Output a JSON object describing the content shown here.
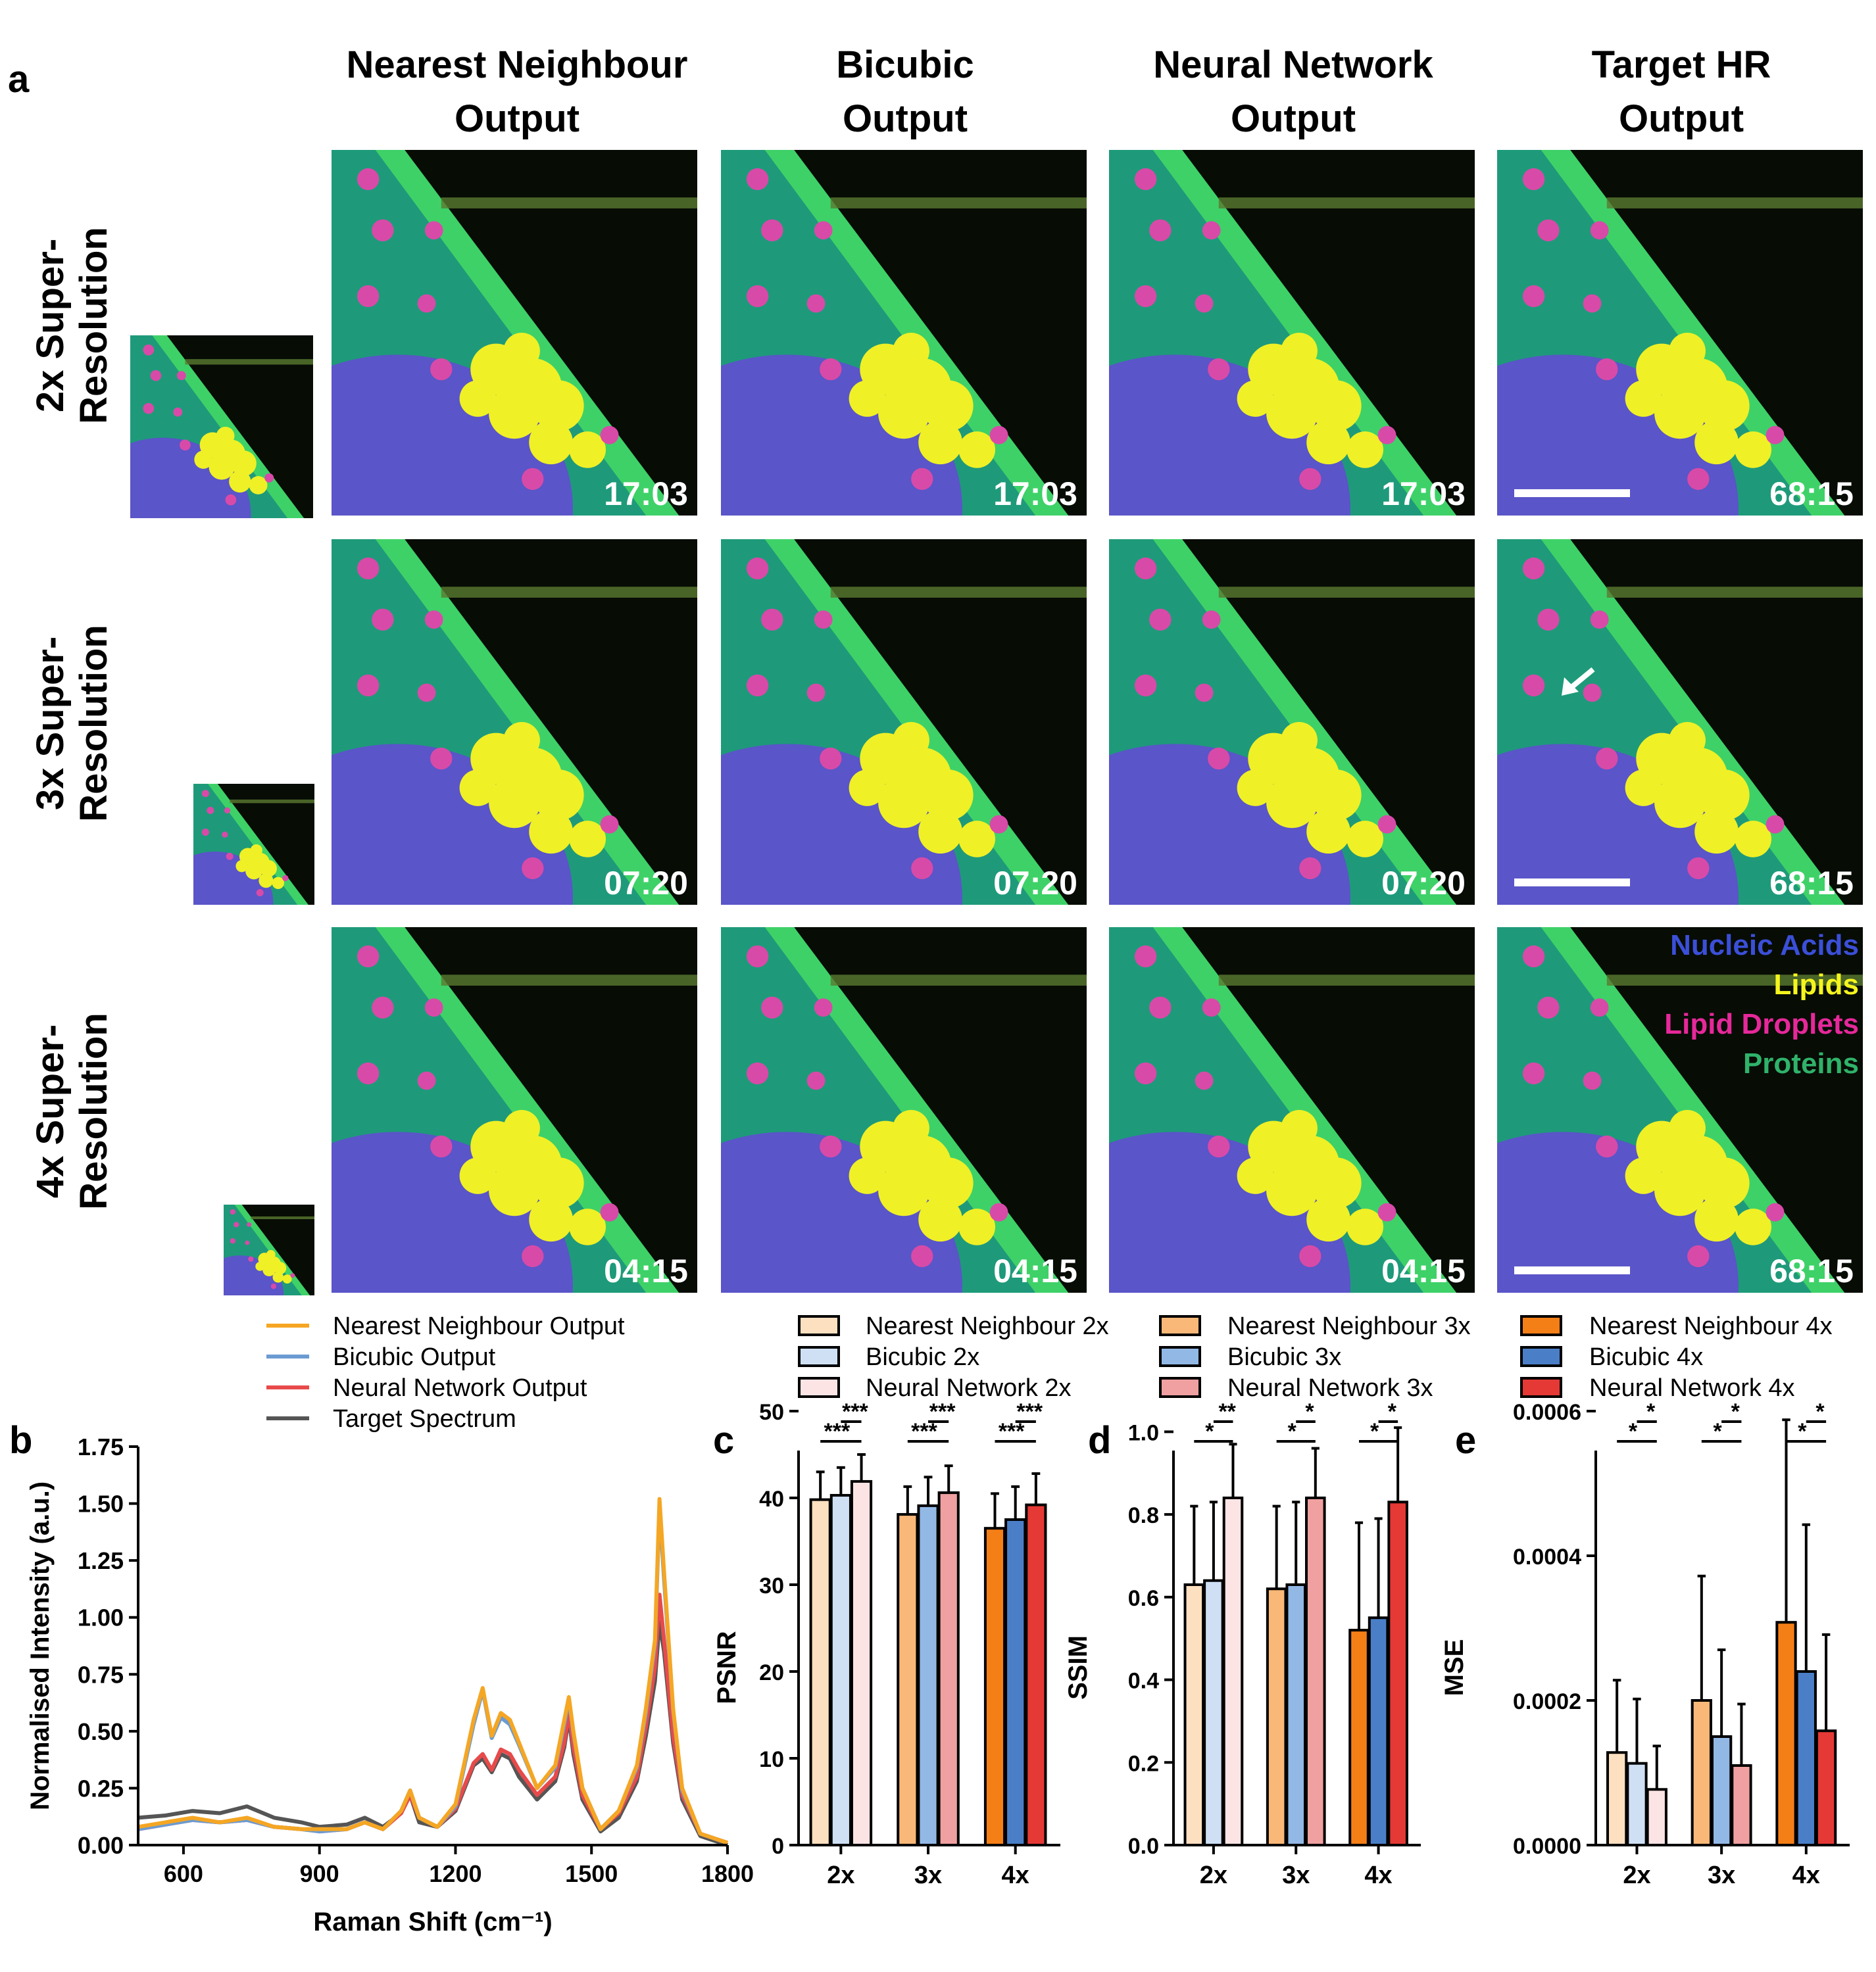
{
  "panel_a": {
    "letter": "a",
    "columns": [
      {
        "line1": "Nearest Neighbour",
        "line2": "Output"
      },
      {
        "line1": "Bicubic",
        "line2": "Output"
      },
      {
        "line1": "Neural Network",
        "line2": "Output"
      },
      {
        "line1": "Target HR",
        "line2": "Output"
      }
    ],
    "rows": [
      {
        "line1": "2x Super-",
        "line2": "Resolution",
        "times": [
          "17:03",
          "17:03",
          "17:03",
          "68:15"
        ]
      },
      {
        "line1": "3x Super-",
        "line2": "Resolution",
        "times": [
          "07:20",
          "07:20",
          "07:20",
          "68:15"
        ]
      },
      {
        "line1": "4x Super-",
        "line2": "Resolution",
        "times": [
          "04:15",
          "04:15",
          "04:15",
          "68:15"
        ]
      }
    ],
    "channel_legend": [
      {
        "label": "Nucleic Acids",
        "color": "#3b4fd8"
      },
      {
        "label": "Lipids",
        "color": "#f5f51e"
      },
      {
        "label": "Lipid Droplets",
        "color": "#e6289a"
      },
      {
        "label": "Proteins",
        "color": "#2fb36a"
      }
    ],
    "image_colors": {
      "background": "#070c05",
      "nucleus": "#5a55c8",
      "cytoplasm": "#1e9a7a",
      "membrane": "#3ed168",
      "lipid": "#f0f026",
      "droplet": "#d84aa8"
    }
  },
  "legend_b": [
    {
      "label": "Nearest Neighbour Output",
      "color": "#f5a623"
    },
    {
      "label": "Bicubic Output",
      "color": "#6b9bd2"
    },
    {
      "label": "Neural Network Output",
      "color": "#e84a4a"
    },
    {
      "label": "Target Spectrum",
      "color": "#555555"
    }
  ],
  "legend_bars": [
    {
      "label": "Nearest Neighbour 2x",
      "color": "#fde0c0"
    },
    {
      "label": "Bicubic 2x",
      "color": "#cfe0f5"
    },
    {
      "label": "Neural Network 2x",
      "color": "#fde4e4"
    },
    {
      "label": "Nearest Neighbour 3x",
      "color": "#f9b878"
    },
    {
      "label": "Bicubic 3x",
      "color": "#92b8e6"
    },
    {
      "label": "Neural Network 3x",
      "color": "#f0a0a0"
    },
    {
      "label": "Nearest Neighbour 4x",
      "color": "#f57f17"
    },
    {
      "label": "Bicubic 4x",
      "color": "#4a7fc8"
    },
    {
      "label": "Neural Network 4x",
      "color": "#e53935"
    }
  ],
  "chart_data": [
    {
      "panel": "b",
      "type": "line",
      "xlabel": "Raman Shift (cm⁻¹)",
      "ylabel": "Normalised Intensity (a.u.)",
      "xlim": [
        500,
        1800
      ],
      "ylim": [
        0,
        1.75
      ],
      "xticks": [
        600,
        900,
        1200,
        1500,
        1800
      ],
      "yticks": [
        "0.00",
        "0.25",
        "0.50",
        "0.75",
        "1.00",
        "1.25",
        "1.50",
        "1.75"
      ],
      "x": [
        500,
        560,
        620,
        680,
        740,
        800,
        860,
        900,
        960,
        1000,
        1040,
        1080,
        1100,
        1120,
        1160,
        1200,
        1240,
        1260,
        1280,
        1300,
        1320,
        1340,
        1380,
        1420,
        1440,
        1450,
        1460,
        1480,
        1520,
        1560,
        1600,
        1620,
        1640,
        1650,
        1660,
        1680,
        1700,
        1740,
        1800
      ],
      "series": [
        {
          "name": "Nearest Neighbour Output",
          "color": "#f5a623",
          "values": [
            0.08,
            0.1,
            0.12,
            0.1,
            0.12,
            0.08,
            0.07,
            0.07,
            0.07,
            0.1,
            0.07,
            0.15,
            0.24,
            0.12,
            0.08,
            0.18,
            0.55,
            0.69,
            0.48,
            0.58,
            0.55,
            0.45,
            0.25,
            0.35,
            0.55,
            0.65,
            0.5,
            0.25,
            0.07,
            0.15,
            0.35,
            0.6,
            0.9,
            1.52,
            1.2,
            0.6,
            0.25,
            0.05,
            0.01
          ]
        },
        {
          "name": "Bicubic Output",
          "color": "#6b9bd2",
          "values": [
            0.07,
            0.09,
            0.11,
            0.1,
            0.11,
            0.08,
            0.07,
            0.06,
            0.07,
            0.1,
            0.07,
            0.15,
            0.24,
            0.12,
            0.08,
            0.17,
            0.53,
            0.68,
            0.47,
            0.56,
            0.53,
            0.44,
            0.25,
            0.34,
            0.53,
            0.64,
            0.49,
            0.25,
            0.07,
            0.15,
            0.34,
            0.58,
            0.88,
            1.48,
            1.17,
            0.59,
            0.24,
            0.05,
            0.01
          ]
        },
        {
          "name": "Neural Network Output",
          "color": "#e84a4a",
          "values": [
            0.07,
            0.09,
            0.11,
            0.1,
            0.11,
            0.08,
            0.07,
            0.06,
            0.07,
            0.1,
            0.07,
            0.14,
            0.22,
            0.12,
            0.08,
            0.16,
            0.36,
            0.4,
            0.33,
            0.42,
            0.4,
            0.33,
            0.22,
            0.3,
            0.45,
            0.58,
            0.43,
            0.22,
            0.07,
            0.14,
            0.3,
            0.52,
            0.78,
            1.1,
            0.9,
            0.48,
            0.22,
            0.05,
            0.01
          ]
        },
        {
          "name": "Target Spectrum",
          "color": "#555555",
          "values": [
            0.12,
            0.13,
            0.15,
            0.14,
            0.17,
            0.12,
            0.1,
            0.08,
            0.09,
            0.12,
            0.08,
            0.14,
            0.22,
            0.1,
            0.08,
            0.15,
            0.35,
            0.38,
            0.32,
            0.4,
            0.38,
            0.3,
            0.2,
            0.28,
            0.43,
            0.56,
            0.4,
            0.2,
            0.06,
            0.12,
            0.28,
            0.48,
            0.72,
            0.98,
            0.85,
            0.45,
            0.2,
            0.04,
            0.0
          ]
        }
      ]
    },
    {
      "panel": "c",
      "type": "bar",
      "ylabel": "PSNR",
      "ylim": [
        0,
        50
      ],
      "yticks": [
        "0",
        "10",
        "20",
        "30",
        "40",
        "50"
      ],
      "categories": [
        "2x",
        "3x",
        "4x"
      ],
      "series": [
        {
          "name": "Nearest Neighbour",
          "values": [
            39.8,
            38.1,
            36.5
          ],
          "errors": [
            3.2,
            3.2,
            4.0
          ]
        },
        {
          "name": "Bicubic",
          "values": [
            40.3,
            39.1,
            37.5
          ],
          "errors": [
            3.2,
            3.3,
            3.8
          ]
        },
        {
          "name": "Neural Network",
          "values": [
            41.9,
            40.6,
            39.2
          ],
          "errors": [
            3.1,
            3.1,
            3.6
          ]
        }
      ],
      "significance": [
        {
          "group": 0,
          "pair": "bicubic-nn",
          "label": "***"
        },
        {
          "group": 0,
          "pair": "nn-nn",
          "label": "***"
        },
        {
          "group": 1,
          "pair": "bicubic-nn",
          "label": "***"
        },
        {
          "group": 1,
          "pair": "nn-nn",
          "label": "***"
        },
        {
          "group": 2,
          "pair": "bicubic-nn",
          "label": "***"
        },
        {
          "group": 2,
          "pair": "nn-nn",
          "label": "***"
        }
      ]
    },
    {
      "panel": "d",
      "type": "bar",
      "ylabel": "SSIM",
      "ylim": [
        0,
        1.05
      ],
      "yticks": [
        "0.0",
        "0.2",
        "0.4",
        "0.6",
        "0.8",
        "1.0"
      ],
      "categories": [
        "2x",
        "3x",
        "4x"
      ],
      "series": [
        {
          "name": "Nearest Neighbour",
          "values": [
            0.63,
            0.62,
            0.52
          ],
          "errors": [
            0.19,
            0.2,
            0.26
          ]
        },
        {
          "name": "Bicubic",
          "values": [
            0.64,
            0.63,
            0.55
          ],
          "errors": [
            0.19,
            0.2,
            0.24
          ]
        },
        {
          "name": "Neural Network",
          "values": [
            0.84,
            0.84,
            0.83
          ],
          "errors": [
            0.13,
            0.12,
            0.18
          ]
        }
      ],
      "significance": [
        {
          "group": 0,
          "pair": "bicubic-nn",
          "label": "**"
        },
        {
          "group": 0,
          "pair": "nn-nn",
          "label": "*"
        },
        {
          "group": 1,
          "pair": "bicubic-nn",
          "label": "*"
        },
        {
          "group": 1,
          "pair": "nn-nn",
          "label": "*"
        },
        {
          "group": 2,
          "pair": "bicubic-nn",
          "label": "*"
        },
        {
          "group": 2,
          "pair": "nn-nn",
          "label": "*"
        }
      ]
    },
    {
      "panel": "e",
      "type": "bar",
      "ylabel": "MSE",
      "ylim": [
        0,
        0.0006
      ],
      "yticks": [
        "0.0000",
        "0.0002",
        "0.0004",
        "0.0006"
      ],
      "categories": [
        "2x",
        "3x",
        "4x"
      ],
      "series": [
        {
          "name": "Nearest Neighbour",
          "values": [
            0.000128,
            0.0002,
            0.000308
          ],
          "errors": [
            0.0001,
            0.000172,
            0.00028
          ]
        },
        {
          "name": "Bicubic",
          "values": [
            0.000113,
            0.00015,
            0.00024
          ],
          "errors": [
            8.9e-05,
            0.00012,
            0.000203
          ]
        },
        {
          "name": "Neural Network",
          "values": [
            7.7e-05,
            0.00011,
            0.000158
          ],
          "errors": [
            6e-05,
            8.5e-05,
            0.000133
          ]
        }
      ],
      "significance": [
        {
          "group": 0,
          "pair": "bicubic-nn",
          "label": "*"
        },
        {
          "group": 0,
          "pair": "nn-nn",
          "label": "*"
        },
        {
          "group": 1,
          "pair": "bicubic-nn",
          "label": "*"
        },
        {
          "group": 1,
          "pair": "nn-nn",
          "label": "*"
        },
        {
          "group": 2,
          "pair": "bicubic-nn",
          "label": "*"
        },
        {
          "group": 2,
          "pair": "nn-nn",
          "label": "*"
        }
      ]
    }
  ]
}
